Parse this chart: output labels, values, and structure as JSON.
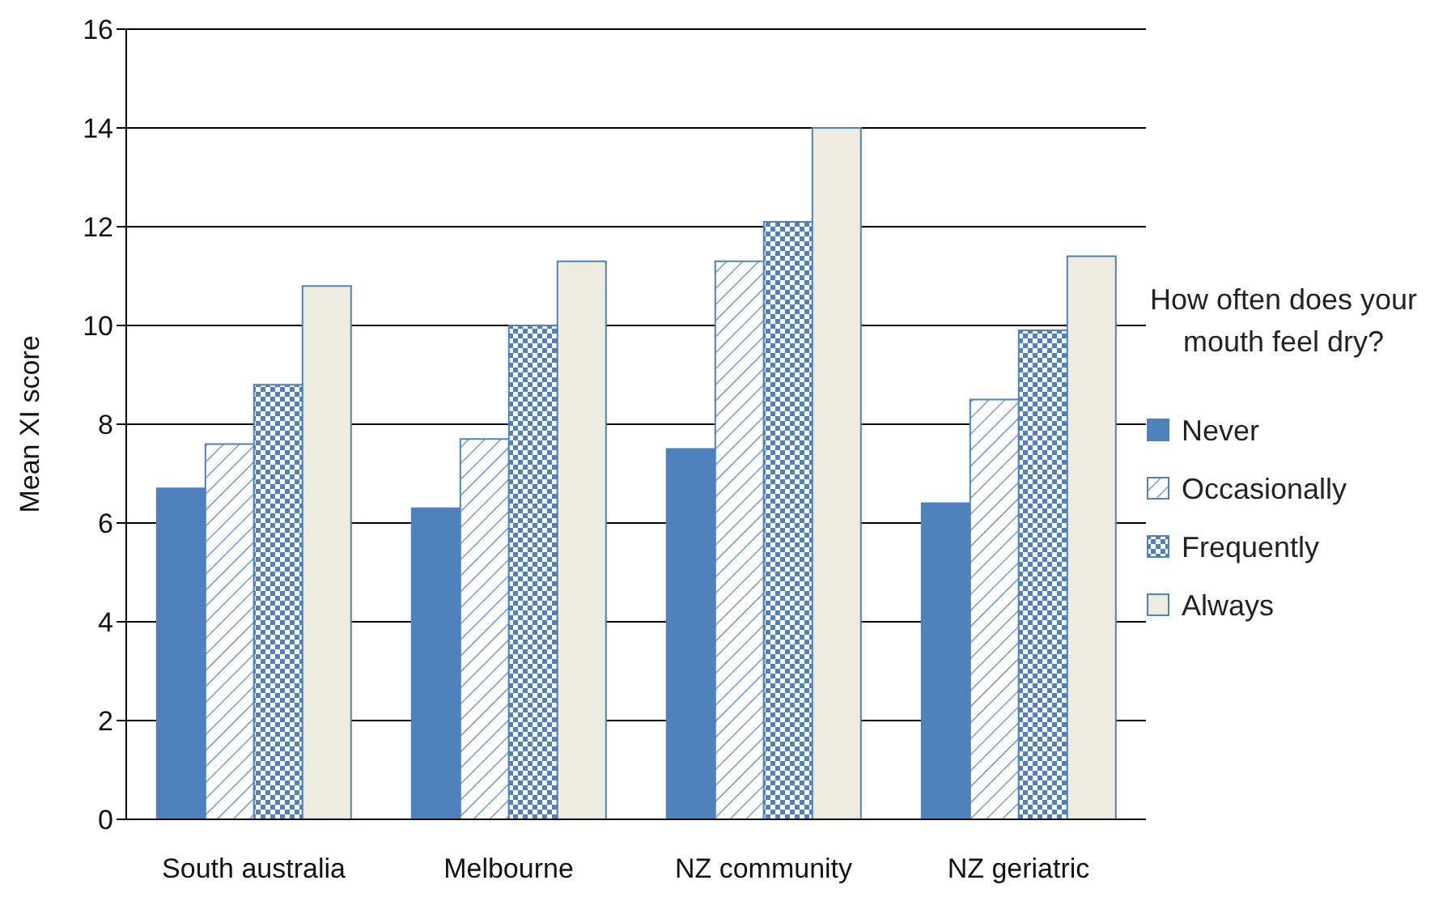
{
  "chart_data": {
    "type": "bar",
    "ylabel": "Mean XI score",
    "legend_title": "How often does your mouth feel dry?",
    "categories": [
      "South australia",
      "Melbourne",
      "NZ community",
      "NZ geriatric"
    ],
    "series": [
      {
        "name": "Never",
        "color": "#4f81bd",
        "values": [
          6.7,
          6.3,
          7.5,
          6.4
        ]
      },
      {
        "name": "Occasionally",
        "color": "#4f81bd",
        "values": [
          7.6,
          7.7,
          11.3,
          8.5
        ]
      },
      {
        "name": "Frequently",
        "color": "#4f81bd",
        "values": [
          8.8,
          10.0,
          12.1,
          9.9
        ]
      },
      {
        "name": "Always",
        "color": "#eeece1",
        "values": [
          10.8,
          11.3,
          14.0,
          11.4
        ]
      }
    ],
    "ylim": [
      0,
      16
    ],
    "yticks": [
      0,
      2,
      4,
      6,
      8,
      10,
      12,
      14,
      16
    ],
    "grid": "y",
    "legend": "right"
  }
}
